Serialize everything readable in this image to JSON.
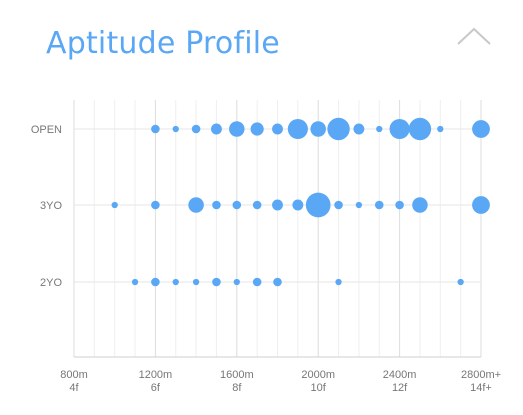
{
  "header": {
    "title": "Aptitude Profile",
    "collapse_icon": "chevron-up-icon"
  },
  "colors": {
    "title": "#5aa8f5",
    "dot": "#5aa8f5",
    "grid": "#e6e6e6",
    "axis": "#cfcfcf",
    "chevron": "#c8c8c8"
  },
  "chart_data": {
    "type": "scatter",
    "title": "Aptitude Profile",
    "xlabel": "",
    "ylabel": "",
    "x_ticks": [
      {
        "value": 800,
        "label1": "800m",
        "label2": "4f"
      },
      {
        "value": 1200,
        "label1": "1200m",
        "label2": "6f"
      },
      {
        "value": 1600,
        "label1": "1600m",
        "label2": "8f"
      },
      {
        "value": 2000,
        "label1": "2000m",
        "label2": "10f"
      },
      {
        "value": 2400,
        "label1": "2400m",
        "label2": "12f"
      },
      {
        "value": 2800,
        "label1": "2800m+",
        "label2": "14f+"
      }
    ],
    "xlim": [
      800,
      2800
    ],
    "categories": [
      "OPEN",
      "3YO",
      "2YO"
    ],
    "grid": true,
    "series": [
      {
        "category": "OPEN",
        "points": [
          {
            "x": 1200,
            "size": 2
          },
          {
            "x": 1300,
            "size": 1
          },
          {
            "x": 1400,
            "size": 2
          },
          {
            "x": 1500,
            "size": 3
          },
          {
            "x": 1600,
            "size": 5
          },
          {
            "x": 1700,
            "size": 4
          },
          {
            "x": 1800,
            "size": 3
          },
          {
            "x": 1900,
            "size": 7
          },
          {
            "x": 2000,
            "size": 5
          },
          {
            "x": 2100,
            "size": 8
          },
          {
            "x": 2200,
            "size": 3
          },
          {
            "x": 2300,
            "size": 1
          },
          {
            "x": 2400,
            "size": 7
          },
          {
            "x": 2500,
            "size": 8
          },
          {
            "x": 2600,
            "size": 1
          },
          {
            "x": 2800,
            "size": 6
          }
        ]
      },
      {
        "category": "3YO",
        "points": [
          {
            "x": 1000,
            "size": 1
          },
          {
            "x": 1200,
            "size": 2
          },
          {
            "x": 1400,
            "size": 5
          },
          {
            "x": 1500,
            "size": 2
          },
          {
            "x": 1600,
            "size": 2
          },
          {
            "x": 1700,
            "size": 2
          },
          {
            "x": 1800,
            "size": 3
          },
          {
            "x": 1900,
            "size": 3
          },
          {
            "x": 2000,
            "size": 9
          },
          {
            "x": 2100,
            "size": 2
          },
          {
            "x": 2200,
            "size": 1
          },
          {
            "x": 2300,
            "size": 2
          },
          {
            "x": 2400,
            "size": 2
          },
          {
            "x": 2500,
            "size": 5
          },
          {
            "x": 2800,
            "size": 6
          }
        ]
      },
      {
        "category": "2YO",
        "points": [
          {
            "x": 1100,
            "size": 1
          },
          {
            "x": 1200,
            "size": 2
          },
          {
            "x": 1300,
            "size": 1
          },
          {
            "x": 1400,
            "size": 1
          },
          {
            "x": 1500,
            "size": 2
          },
          {
            "x": 1600,
            "size": 1
          },
          {
            "x": 1700,
            "size": 2
          },
          {
            "x": 1800,
            "size": 2
          },
          {
            "x": 2100,
            "size": 1
          },
          {
            "x": 2700,
            "size": 1
          }
        ]
      }
    ]
  }
}
